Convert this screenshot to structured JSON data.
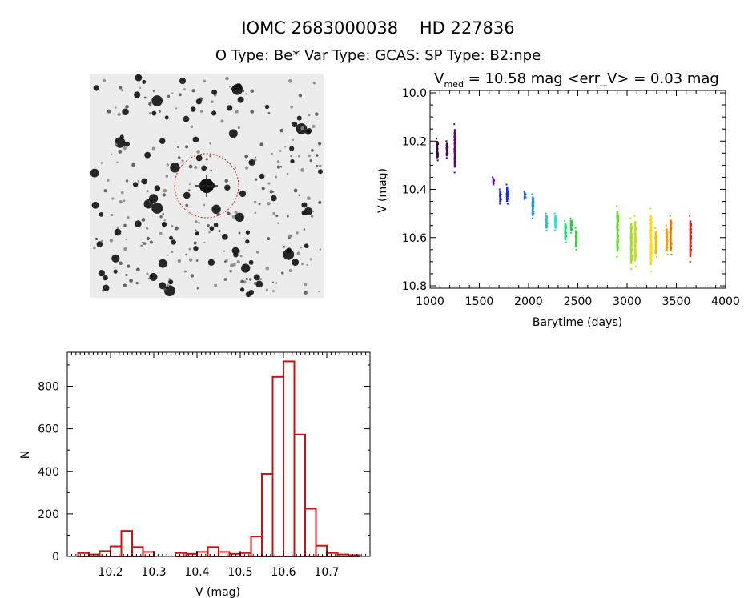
{
  "header": {
    "title": "IOMC 2683000038    HD 227836",
    "subtitle": "O Type: Be*  Var Type: GCAS:  SP Type: B2:npe"
  },
  "chart_data": [
    {
      "type": "image",
      "title": "finding chart",
      "colors": {
        "circle": "#cc2222"
      }
    },
    {
      "type": "scatter",
      "title_prefix": "V",
      "title_sub": "med",
      "title_rest": " = 10.58 mag <err_V> = 0.03 mag",
      "xlabel": "Barytime (days)",
      "ylabel": "V (mag)",
      "xlim": [
        1000,
        4000
      ],
      "ylim": [
        10.0,
        10.8
      ],
      "y_inverted": true,
      "xticks": [
        "1000",
        "1500",
        "2000",
        "2500",
        "3000",
        "3500",
        "4000"
      ],
      "yticks": [
        "10.0",
        "10.2",
        "10.4",
        "10.6",
        "10.8"
      ],
      "clusters": [
        {
          "x": 1070,
          "vmin": 10.19,
          "vmax": 10.28,
          "color": "#3a0a3a"
        },
        {
          "x": 1170,
          "vmin": 10.2,
          "vmax": 10.27,
          "color": "#4b0a5a"
        },
        {
          "x": 1250,
          "vmin": 10.13,
          "vmax": 10.33,
          "color": "#5a0a80"
        },
        {
          "x": 1640,
          "vmin": 10.35,
          "vmax": 10.38,
          "color": "#6010a0"
        },
        {
          "x": 1710,
          "vmin": 10.4,
          "vmax": 10.46,
          "color": "#3020c0"
        },
        {
          "x": 1780,
          "vmin": 10.38,
          "vmax": 10.46,
          "color": "#1030e0"
        },
        {
          "x": 1960,
          "vmin": 10.41,
          "vmax": 10.44,
          "color": "#2060e0"
        },
        {
          "x": 2040,
          "vmin": 10.42,
          "vmax": 10.52,
          "color": "#2090e0"
        },
        {
          "x": 2180,
          "vmin": 10.5,
          "vmax": 10.57,
          "color": "#20c0e0"
        },
        {
          "x": 2270,
          "vmin": 10.5,
          "vmax": 10.57,
          "color": "#20e0e0"
        },
        {
          "x": 2370,
          "vmin": 10.53,
          "vmax": 10.62,
          "color": "#20e080"
        },
        {
          "x": 2430,
          "vmin": 10.52,
          "vmax": 10.58,
          "color": "#20d040"
        },
        {
          "x": 2480,
          "vmin": 10.56,
          "vmax": 10.65,
          "color": "#40d040"
        },
        {
          "x": 2900,
          "vmin": 10.47,
          "vmax": 10.68,
          "color": "#60e020"
        },
        {
          "x": 3040,
          "vmin": 10.52,
          "vmax": 10.73,
          "color": "#a0e020"
        },
        {
          "x": 3080,
          "vmin": 10.51,
          "vmax": 10.72,
          "color": "#c0e020"
        },
        {
          "x": 3240,
          "vmin": 10.48,
          "vmax": 10.74,
          "color": "#ffe000"
        },
        {
          "x": 3290,
          "vmin": 10.56,
          "vmax": 10.68,
          "color": "#f0c000"
        },
        {
          "x": 3400,
          "vmin": 10.55,
          "vmax": 10.67,
          "color": "#f0a000"
        },
        {
          "x": 3440,
          "vmin": 10.51,
          "vmax": 10.67,
          "color": "#e07000"
        },
        {
          "x": 3640,
          "vmin": 10.51,
          "vmax": 10.7,
          "color": "#e02010"
        }
      ]
    },
    {
      "type": "bar",
      "subtype": "histogram",
      "xlabel": "V (mag)",
      "ylabel": "N",
      "xlim": [
        10.1,
        10.8
      ],
      "ylim": [
        0,
        960
      ],
      "bin_start": 10.125,
      "bin_width": 0.025,
      "values": [
        16,
        9,
        25,
        47,
        120,
        44,
        21,
        0,
        0,
        16,
        12,
        21,
        44,
        21,
        12,
        16,
        94,
        388,
        844,
        917,
        573,
        224,
        50,
        16,
        9,
        6
      ],
      "xticks": [
        "10.2",
        "10.3",
        "10.4",
        "10.5",
        "10.6",
        "10.7"
      ],
      "yticks": [
        "0",
        "200",
        "400",
        "600",
        "800"
      ],
      "color": "#cc1111"
    }
  ]
}
